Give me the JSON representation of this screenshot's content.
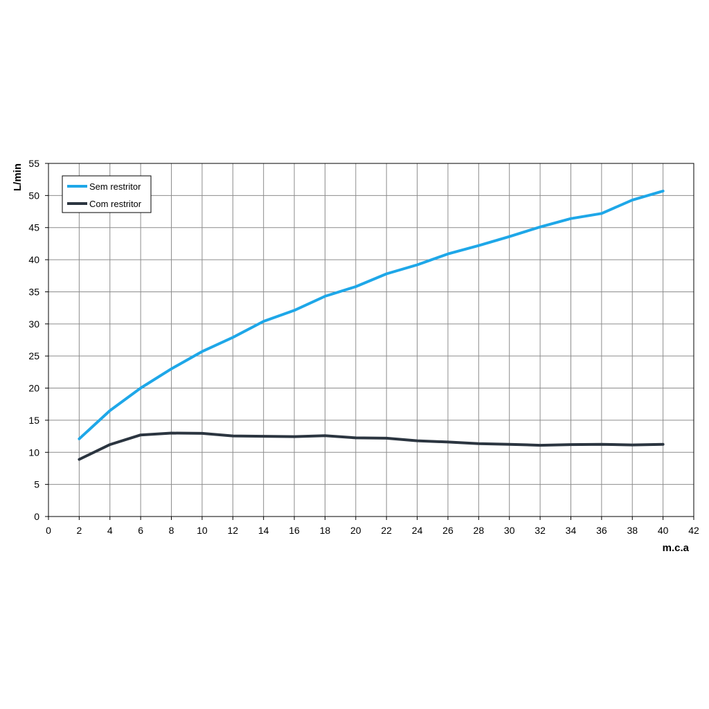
{
  "chart_data": {
    "type": "line",
    "title": "",
    "xlabel": "m.c.a",
    "ylabel": "L/min",
    "xlim": [
      0,
      42
    ],
    "ylim": [
      0,
      55
    ],
    "xticks": [
      0,
      2,
      4,
      6,
      8,
      10,
      12,
      14,
      16,
      18,
      20,
      22,
      24,
      26,
      28,
      30,
      32,
      34,
      36,
      38,
      40,
      42
    ],
    "yticks": [
      0,
      5,
      10,
      15,
      20,
      25,
      30,
      35,
      40,
      45,
      50,
      55
    ],
    "grid": true,
    "legend_position": "top-left",
    "x": [
      2,
      4,
      6,
      8,
      10,
      12,
      14,
      16,
      18,
      20,
      22,
      24,
      26,
      28,
      30,
      32,
      34,
      36,
      38,
      40
    ],
    "series": [
      {
        "name": "Sem restritor",
        "color": "#1ea7e8",
        "values": [
          12.1,
          16.5,
          20.0,
          23.0,
          25.7,
          27.9,
          30.4,
          32.1,
          34.3,
          35.8,
          37.8,
          39.2,
          40.9,
          42.2,
          43.6,
          45.1,
          46.4,
          47.2,
          49.3,
          50.7
        ]
      },
      {
        "name": "Com restritor",
        "color": "#2b3540",
        "values": [
          8.9,
          11.2,
          12.7,
          13.0,
          12.95,
          12.55,
          12.5,
          12.45,
          12.6,
          12.25,
          12.2,
          11.8,
          11.6,
          11.35,
          11.25,
          11.1,
          11.2,
          11.25,
          11.15,
          11.25
        ]
      }
    ]
  }
}
